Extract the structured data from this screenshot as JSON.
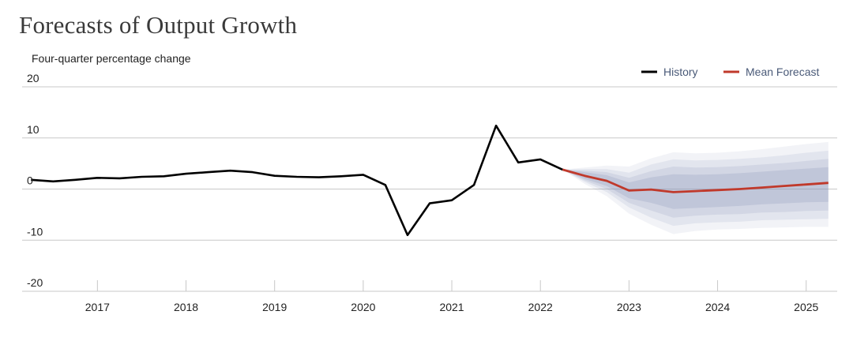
{
  "chart_data": {
    "type": "line",
    "title": "Forecasts of Output Growth",
    "ylabel": "Four-quarter percentage change",
    "xlabel": "",
    "ylim": [
      -20,
      20
    ],
    "yticks": [
      "20",
      "10",
      "0",
      "-10",
      "-20"
    ],
    "ytick_values": [
      20,
      10,
      0,
      -10,
      -20
    ],
    "xticks": [
      "2017",
      "2018",
      "2019",
      "2020",
      "2021",
      "2022",
      "2023",
      "2024",
      "2025"
    ],
    "xtick_values": [
      2017,
      2018,
      2019,
      2020,
      2021,
      2022,
      2023,
      2024,
      2025
    ],
    "xlim": [
      2016.15,
      2025.35
    ],
    "grid": true,
    "legend_position": "top-right",
    "colors": {
      "history": "#000000",
      "forecast": "#c0392b",
      "fan": "#8a94b8",
      "grid": "#c8c8c8"
    },
    "series": [
      {
        "name": "History",
        "x": [
          2016.25,
          2016.5,
          2016.75,
          2017.0,
          2017.25,
          2017.5,
          2017.75,
          2018.0,
          2018.25,
          2018.5,
          2018.75,
          2019.0,
          2019.25,
          2019.5,
          2019.75,
          2020.0,
          2020.25,
          2020.5,
          2020.75,
          2021.0,
          2021.25,
          2021.5,
          2021.75,
          2022.0,
          2022.25
        ],
        "values": [
          1.8,
          1.5,
          1.8,
          2.2,
          2.1,
          2.4,
          2.5,
          3.0,
          3.3,
          3.6,
          3.3,
          2.6,
          2.4,
          2.3,
          2.5,
          2.8,
          0.8,
          -9.0,
          -2.8,
          -2.2,
          0.8,
          12.4,
          5.2,
          5.8,
          3.8
        ]
      },
      {
        "name": "Mean Forecast",
        "x": [
          2022.25,
          2022.5,
          2022.75,
          2023.0,
          2023.25,
          2023.5,
          2023.75,
          2024.0,
          2024.25,
          2024.5,
          2024.75,
          2025.0,
          2025.25
        ],
        "values": [
          3.8,
          2.6,
          1.6,
          -0.3,
          -0.1,
          -0.6,
          -0.4,
          -0.2,
          0.0,
          0.3,
          0.6,
          0.9,
          1.2
        ]
      }
    ],
    "fan": {
      "x": [
        2022.25,
        2022.5,
        2022.75,
        2023.0,
        2023.25,
        2023.5,
        2023.75,
        2024.0,
        2024.25,
        2024.5,
        2024.75,
        2025.0,
        2025.25
      ],
      "bands": [
        {
          "upper": [
            3.8,
            4.2,
            4.6,
            4.4,
            6.0,
            7.2,
            7.0,
            7.1,
            7.4,
            7.8,
            8.3,
            8.8,
            9.2
          ],
          "lower": [
            3.8,
            1.0,
            -1.4,
            -4.8,
            -7.0,
            -8.8,
            -8.2,
            -7.9,
            -7.8,
            -7.6,
            -7.5,
            -7.4,
            -7.4
          ]
        },
        {
          "upper": [
            3.8,
            3.9,
            3.9,
            3.2,
            4.8,
            5.8,
            5.6,
            5.7,
            5.9,
            6.2,
            6.6,
            7.1,
            7.5
          ],
          "lower": [
            3.8,
            1.4,
            -0.6,
            -3.6,
            -5.6,
            -7.2,
            -6.7,
            -6.5,
            -6.4,
            -6.1,
            -6.0,
            -5.9,
            -5.8
          ]
        },
        {
          "upper": [
            3.8,
            3.6,
            3.3,
            2.2,
            3.5,
            4.4,
            4.2,
            4.3,
            4.5,
            4.8,
            5.1,
            5.5,
            5.9
          ],
          "lower": [
            3.8,
            1.7,
            0.0,
            -2.7,
            -4.2,
            -5.6,
            -5.2,
            -5.0,
            -4.9,
            -4.6,
            -4.5,
            -4.3,
            -4.2
          ]
        },
        {
          "upper": [
            3.8,
            3.3,
            2.7,
            1.3,
            2.3,
            2.9,
            2.8,
            2.9,
            3.1,
            3.4,
            3.7,
            4.0,
            4.3
          ],
          "lower": [
            3.8,
            2.0,
            0.6,
            -1.8,
            -2.7,
            -3.9,
            -3.7,
            -3.5,
            -3.3,
            -3.0,
            -2.8,
            -2.6,
            -2.5
          ]
        }
      ]
    }
  }
}
